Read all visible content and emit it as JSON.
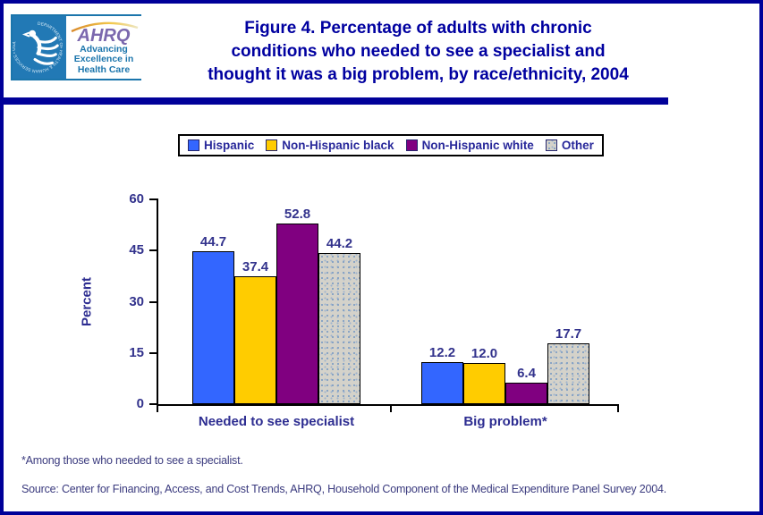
{
  "slide": {
    "title_lines": [
      "Figure 4. Percentage of adults with chronic",
      "conditions who needed to see a specialist and",
      "thought it was a big problem, by race/ethnicity, 2004"
    ],
    "footnote": "*Among those who needed to see a specialist.",
    "source": "Source: Center for Financing, Access, and Cost Trends, AHRQ, Household Component of the Medical Expenditure Panel Survey 2004."
  },
  "logo": {
    "ahrq": "AHRQ",
    "tagline": "Advancing Excellence in Health Care",
    "seal_text": "DEPARTMENT OF HEALTH & HUMAN SERVICES • USA"
  },
  "colors": {
    "navy": "#000099",
    "title_text": "#0000A0",
    "label_text": "#32328C",
    "hhs_blue": "#2279B5",
    "ahrq_purple": "#7B68AE"
  },
  "chart_data": {
    "type": "bar",
    "categories": [
      "Needed to see specialist",
      "Big problem*"
    ],
    "series": [
      {
        "name": "Hispanic",
        "color": "#3366FF",
        "values": [
          44.7,
          12.2
        ]
      },
      {
        "name": "Non-Hispanic black",
        "color": "#FFCC00",
        "values": [
          37.4,
          12.0
        ]
      },
      {
        "name": "Non-Hispanic white",
        "color": "#800080",
        "values": [
          52.8,
          6.4
        ]
      },
      {
        "name": "Other",
        "color": "#D4D2CA",
        "values": [
          44.2,
          17.7
        ],
        "pattern": "speckle"
      }
    ],
    "title": "",
    "xlabel": "",
    "ylabel": "Percent",
    "ylim": [
      0,
      60
    ],
    "yticks": [
      0,
      15,
      30,
      45,
      60
    ],
    "grid": false,
    "legend_position": "top",
    "value_labels": true
  }
}
